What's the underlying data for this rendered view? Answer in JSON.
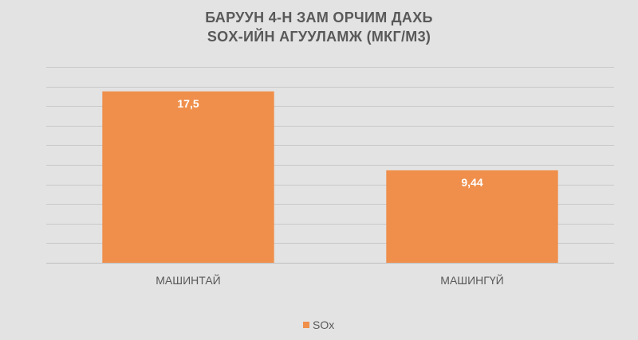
{
  "chart_data": {
    "type": "bar",
    "title_lines": [
      "БАРУУН 4-Н ЗАМ ОРЧИМ ДАХЬ",
      "SOX-ИЙН АГУУЛАМЖ (МКГ/М3)"
    ],
    "categories": [
      "МАШИНТАЙ",
      "МАШИНГҮЙ"
    ],
    "series": [
      {
        "name": "SOx",
        "values": [
          17.5,
          9.44
        ],
        "labels": [
          "17,5",
          "9,44"
        ],
        "color": "#ef8f4b"
      }
    ],
    "ylim": [
      0,
      20
    ],
    "y_step": 2,
    "grid": true,
    "y_tick_labels_shown": false,
    "legend_position": "bottom",
    "background": "#e3e3e3",
    "gridline_color": "#c8c8c8",
    "text_color": "#595959"
  }
}
